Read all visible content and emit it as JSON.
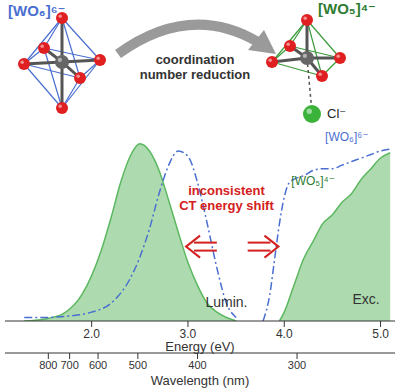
{
  "chart_data": {
    "type": "line",
    "x_label": "Energy (eV)",
    "xlim": [
      1.1,
      5.15
    ],
    "xticks": [
      {
        "value": 2,
        "label": "2.0"
      },
      {
        "value": 3,
        "label": "3.0"
      },
      {
        "value": 4,
        "label": "4.0"
      },
      {
        "value": 5,
        "label": "5.0"
      }
    ],
    "ylim": [
      0,
      1.05
    ],
    "tick_labels": "x",
    "grid": false,
    "secondary_x": {
      "label": "Wavelength (nm)",
      "ticks": [
        800,
        700,
        600,
        500,
        400,
        300
      ]
    },
    "annotations": {
      "luminescence": "Lumin.",
      "excitation": "Exc.",
      "shift": [
        "inconsistent",
        "CT energy shift"
      ]
    },
    "series": [
      {
        "type": "area",
        "color": "#5cb860",
        "x": [
          1.3,
          1.5,
          1.7,
          1.9,
          2.1,
          2.2,
          2.3,
          2.4,
          2.5,
          2.6,
          2.7,
          2.8,
          2.9,
          3.0,
          3.1,
          3.2,
          3.3,
          3.4,
          3.5
        ],
        "values": [
          0.0,
          0.01,
          0.04,
          0.15,
          0.4,
          0.58,
          0.78,
          0.93,
          1.0,
          0.96,
          0.85,
          0.68,
          0.5,
          0.33,
          0.2,
          0.1,
          0.05,
          0.02,
          0.0
        ]
      },
      {
        "type": "line",
        "color": "#4a6fd0",
        "line_style": "dashdot",
        "x": [
          1.3,
          1.5,
          1.8,
          2.0,
          2.2,
          2.4,
          2.5,
          2.6,
          2.7,
          2.8,
          2.9,
          3.0,
          3.1,
          3.2,
          3.3,
          3.4,
          3.5
        ],
        "values": [
          0.02,
          0.02,
          0.03,
          0.05,
          0.1,
          0.24,
          0.36,
          0.52,
          0.72,
          0.88,
          0.96,
          0.93,
          0.78,
          0.55,
          0.3,
          0.1,
          0.02
        ]
      },
      {
        "name": "[WO₆]⁶⁻",
        "type": "line",
        "color": "#4a6fd0",
        "line_style": "dashdot",
        "x": [
          3.78,
          3.85,
          3.9,
          3.95,
          4.0,
          4.05,
          4.1,
          4.2,
          4.3,
          4.4,
          4.5,
          4.6,
          4.7,
          4.8,
          4.9,
          5.0,
          5.1
        ],
        "values": [
          0.0,
          0.15,
          0.35,
          0.55,
          0.7,
          0.78,
          0.8,
          0.82,
          0.85,
          0.86,
          0.86,
          0.88,
          0.9,
          0.92,
          0.94,
          0.96,
          0.97
        ]
      },
      {
        "name": "[WO₅]⁴⁻",
        "type": "area",
        "color": "#5cb860",
        "x": [
          3.95,
          4.0,
          4.1,
          4.2,
          4.3,
          4.4,
          4.5,
          4.6,
          4.7,
          4.8,
          4.9,
          5.0,
          5.1
        ],
        "values": [
          0.0,
          0.05,
          0.2,
          0.35,
          0.45,
          0.55,
          0.6,
          0.67,
          0.72,
          0.8,
          0.86,
          0.92,
          0.95
        ]
      }
    ]
  },
  "diagram": {
    "left_label": "[WO₆]⁶⁻",
    "right_label": "[WO₅]⁴⁻",
    "arrow_label": [
      "coordination",
      "number reduction"
    ],
    "anion_label": "Cl⁻"
  }
}
